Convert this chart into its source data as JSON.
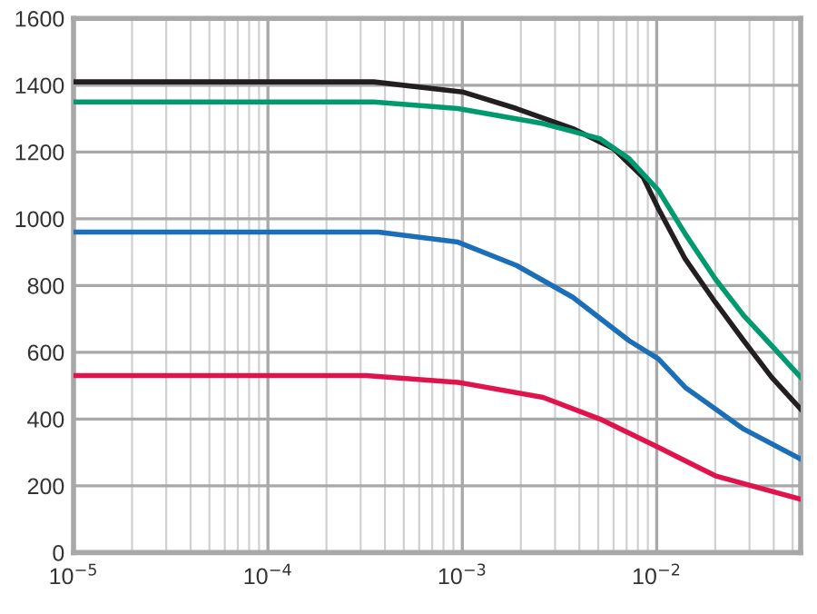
{
  "chart_data": {
    "type": "line",
    "x": [
      1e-05,
      0.00035,
      0.001,
      0.0019,
      0.0037,
      0.006,
      0.0085,
      0.0102,
      0.014,
      0.02,
      0.028,
      0.039,
      0.055
    ],
    "series": [
      {
        "color": "#231f20",
        "values": [
          1410,
          1410,
          1380,
          1330,
          1270,
          1210,
          1125,
          1030,
          880,
          750,
          635,
          525,
          430
        ]
      },
      {
        "color": "#009a6e",
        "x": [
          1e-05,
          0.00035,
          0.00095,
          0.0026,
          0.0051,
          0.0072,
          0.0102,
          0.014,
          0.02,
          0.028,
          0.039,
          0.055
        ],
        "values": [
          1350,
          1350,
          1330,
          1285,
          1240,
          1180,
          1085,
          955,
          820,
          710,
          620,
          525
        ]
      },
      {
        "color": "#1a6fb8",
        "x": [
          1e-05,
          0.00037,
          0.00095,
          0.0019,
          0.0037,
          0.0072,
          0.0102,
          0.014,
          0.028,
          0.055
        ],
        "values": [
          960,
          960,
          930,
          860,
          765,
          635,
          580,
          495,
          370,
          280
        ]
      },
      {
        "color": "#e0144c",
        "x": [
          1e-05,
          0.00032,
          0.00095,
          0.0026,
          0.0051,
          0.0102,
          0.02,
          0.055
        ],
        "values": [
          530,
          530,
          510,
          465,
          400,
          315,
          230,
          160
        ]
      }
    ],
    "log": "x",
    "xlim": [
      1e-05,
      0.055
    ],
    "xticks": [
      {
        "value": 1e-05,
        "label": "10$^{−5}$"
      },
      {
        "value": 0.0001,
        "label": "10$^{−4}$"
      },
      {
        "value": 0.001,
        "label": "10$^{−3}$"
      },
      {
        "value": 0.01,
        "label": "10$^{−2}$"
      }
    ],
    "ylim": [
      0,
      1600
    ],
    "yticks": [
      0,
      200,
      400,
      600,
      800,
      1000,
      1200,
      1400,
      1600
    ],
    "grid": true,
    "marker": "none",
    "line_style": "solid"
  }
}
